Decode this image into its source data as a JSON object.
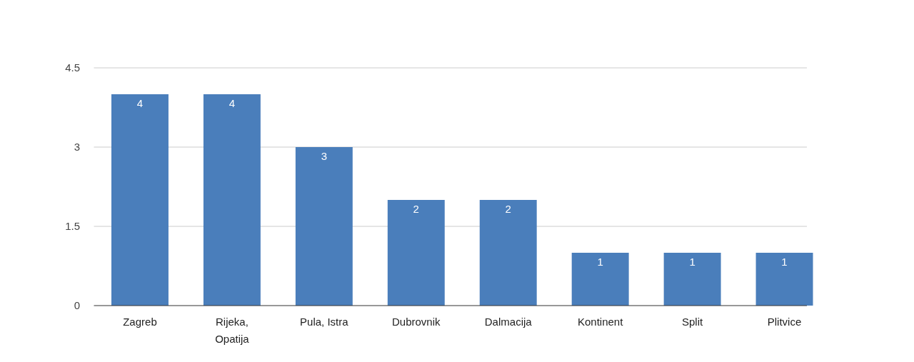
{
  "chart_data": {
    "type": "bar",
    "categories": [
      "Zagreb",
      "Rijeka, Opatija",
      "Pula, Istra",
      "Dubrovnik",
      "Dalmacija",
      "Kontinent",
      "Split",
      "Plitvice"
    ],
    "values": [
      4,
      4,
      3,
      2,
      2,
      1,
      1,
      1
    ],
    "color": "#4a7ebb",
    "ylim": [
      0,
      4.5
    ],
    "yticks": [
      0,
      1.5,
      3,
      4.5
    ],
    "grid": "y",
    "data_labels": true
  }
}
